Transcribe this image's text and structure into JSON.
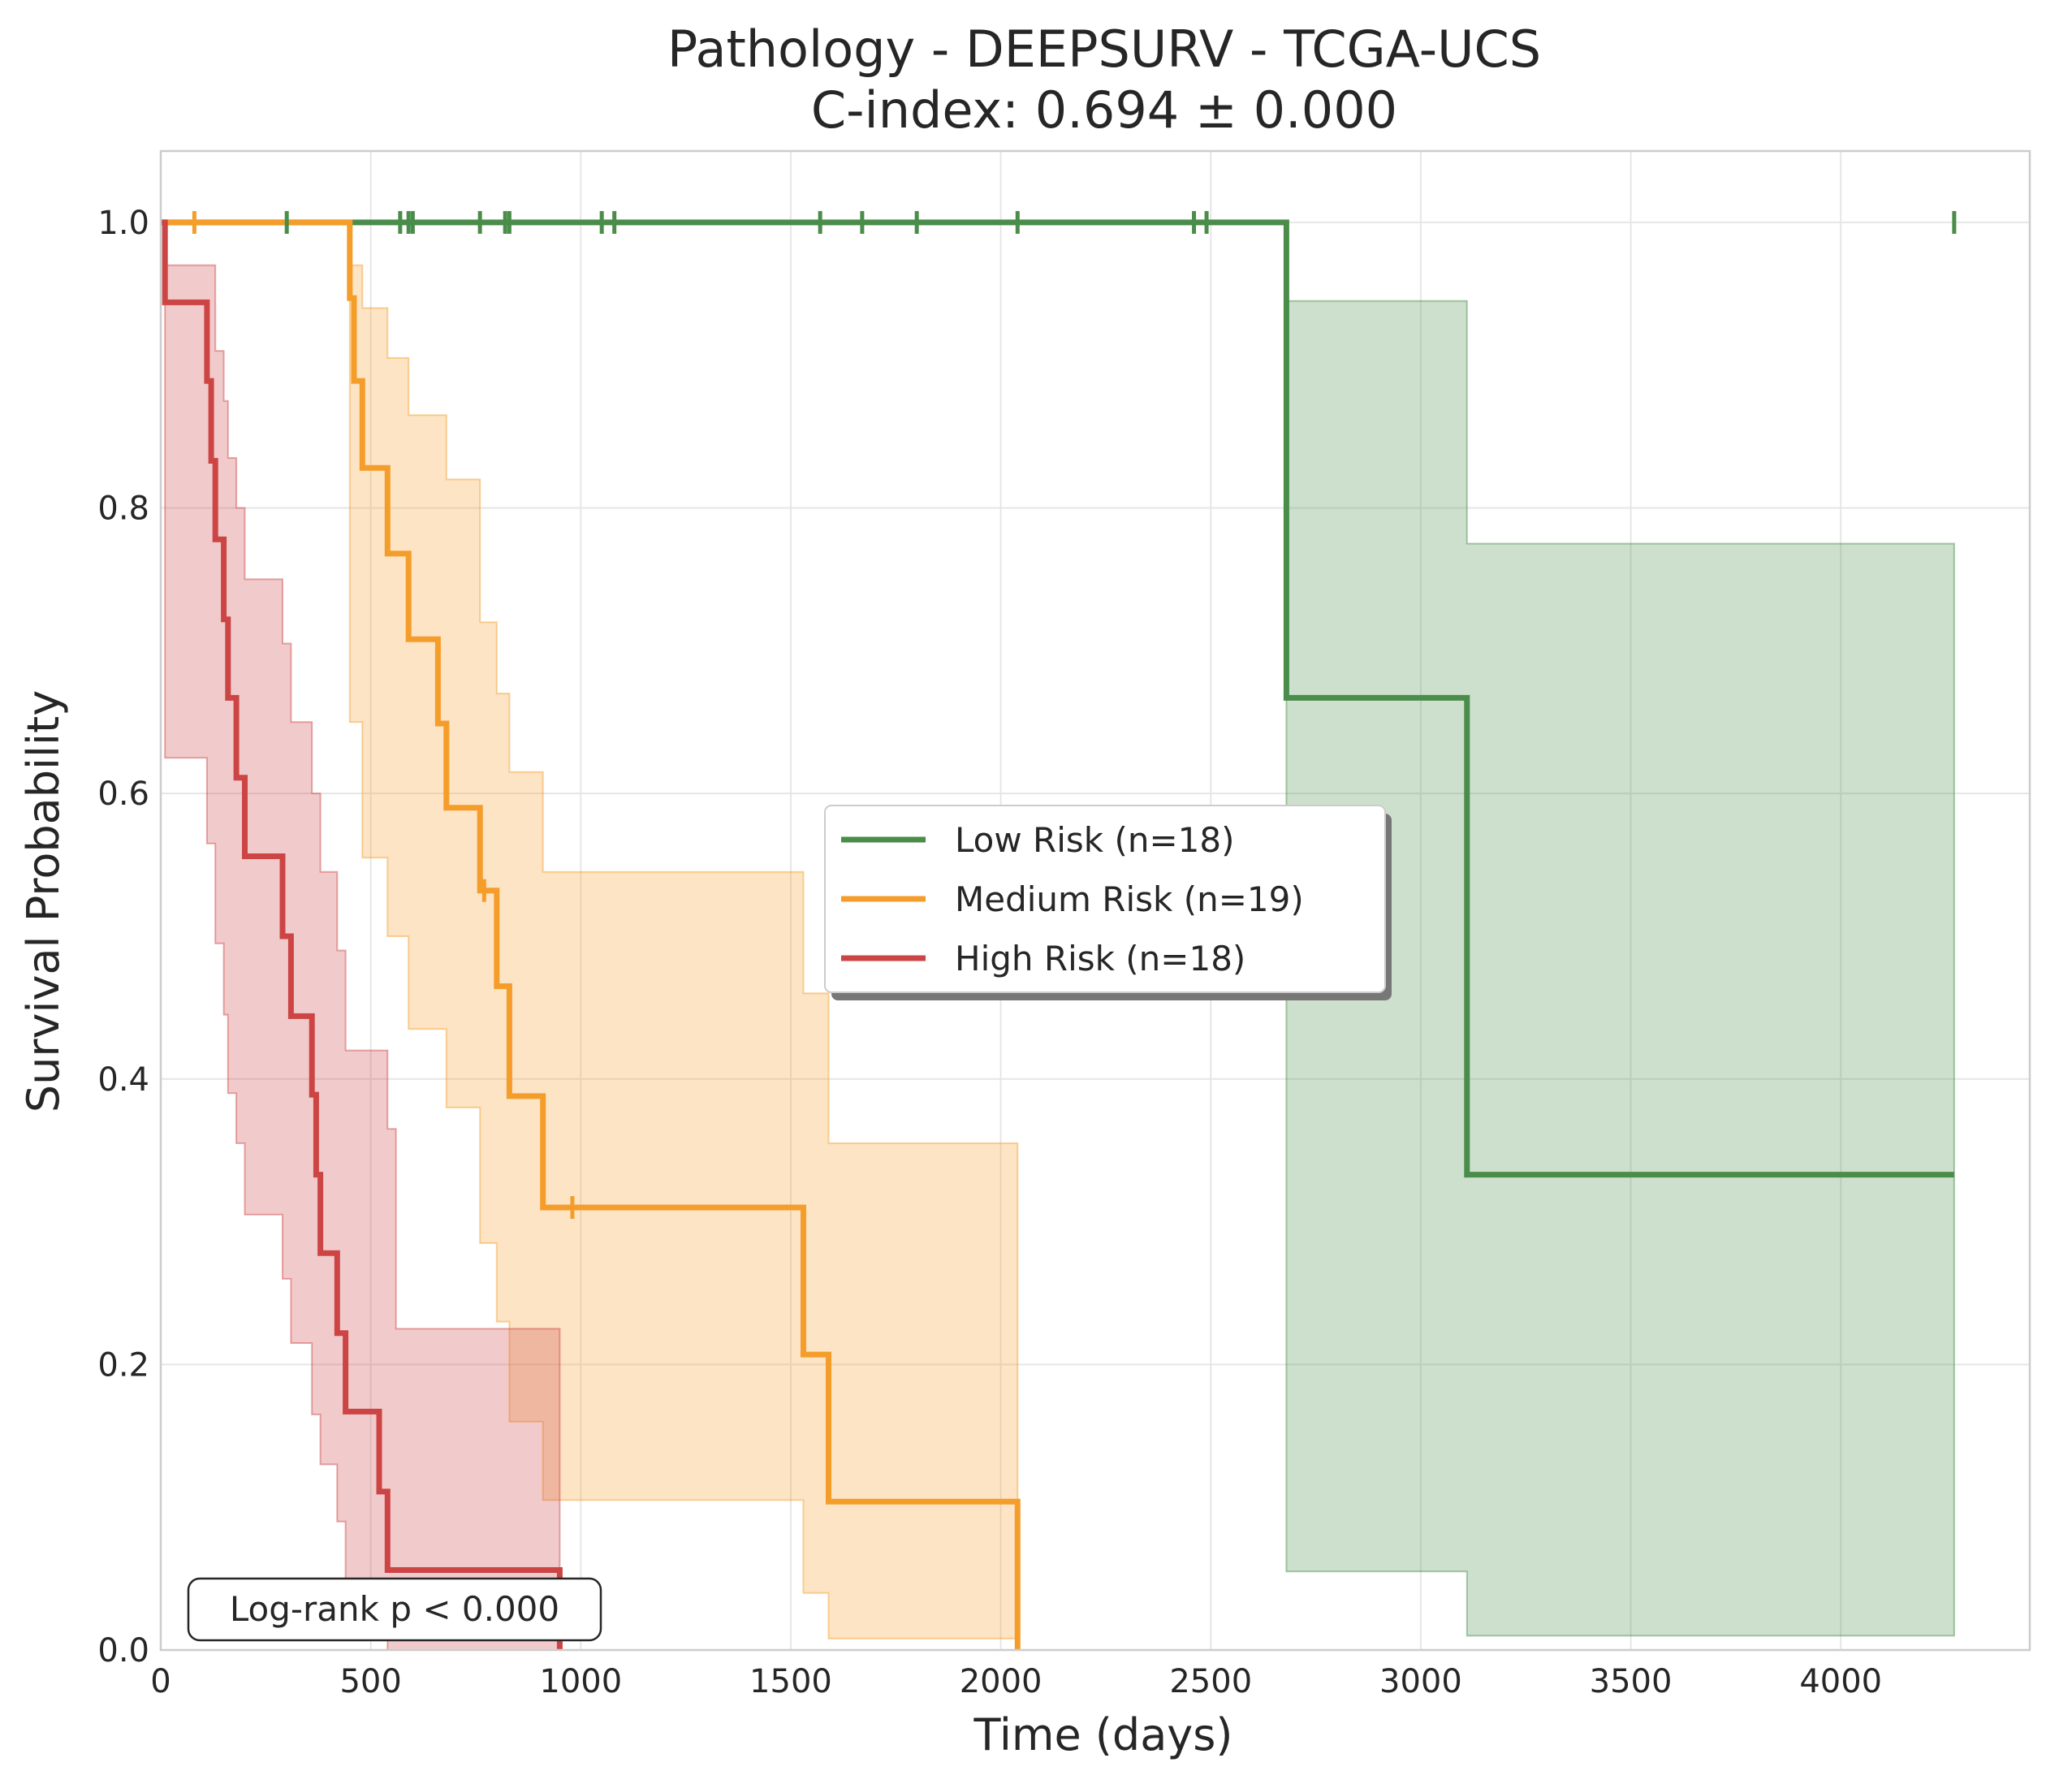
{
  "chart_data": {
    "type": "line",
    "subtype": "kaplan-meier",
    "title": "Pathology - DEEPSURV - TCGA-UCS",
    "subtitle": "C-index: 0.694 ± 0.000",
    "xlabel": "Time (days)",
    "ylabel": "Survival Probability",
    "xlim": [
      0,
      4450
    ],
    "ylim": [
      0,
      1.05
    ],
    "xticks": [
      0,
      500,
      1000,
      1500,
      2000,
      2500,
      3000,
      3500,
      4000
    ],
    "xtick_labels": [
      "0",
      "500",
      "1000",
      "1500",
      "2000",
      "2500",
      "3000",
      "3500",
      "4000"
    ],
    "yticks": [
      0,
      0.2,
      0.4,
      0.6,
      0.8,
      1.0
    ],
    "ytick_labels": [
      "0.0",
      "0.2",
      "0.4",
      "0.6",
      "0.8",
      "1.0"
    ],
    "grid": true,
    "legend_position": "center-right",
    "annotation": "Log-rank p < 0.000",
    "series": [
      {
        "name": "Low Risk (n=18)",
        "color": "#4a8c4a",
        "steps": [
          [
            0,
            1.0
          ],
          [
            2680,
            0.667
          ],
          [
            3110,
            0.333
          ],
          [
            4270,
            0.333
          ]
        ],
        "ci": [
          [
            2680,
            0.055,
            0.945
          ],
          [
            3110,
            0.01,
            0.775
          ],
          [
            4270,
            0.01,
            0.775
          ]
        ],
        "censor_x": [
          300,
          570,
          590,
          600,
          760,
          820,
          830,
          1050,
          1080,
          1570,
          1670,
          1800,
          2040,
          2460,
          2490,
          4270
        ],
        "censor_y": 1.0
      },
      {
        "name": "Medium Risk (n=19)",
        "color": "#f59d2a",
        "steps": [
          [
            0,
            1.0
          ],
          [
            450,
            0.947
          ],
          [
            460,
            0.889
          ],
          [
            480,
            0.828
          ],
          [
            540,
            0.768
          ],
          [
            590,
            0.708
          ],
          [
            660,
            0.649
          ],
          [
            680,
            0.59
          ],
          [
            760,
            0.532
          ],
          [
            800,
            0.465
          ],
          [
            830,
            0.388
          ],
          [
            910,
            0.31
          ],
          [
            1530,
            0.207
          ],
          [
            1590,
            0.104
          ],
          [
            2040,
            0.0
          ]
        ],
        "ci": [
          [
            450,
            0.65,
            0.97
          ],
          [
            480,
            0.555,
            0.94
          ],
          [
            540,
            0.5,
            0.905
          ],
          [
            590,
            0.435,
            0.865
          ],
          [
            680,
            0.38,
            0.82
          ],
          [
            760,
            0.285,
            0.72
          ],
          [
            800,
            0.23,
            0.67
          ],
          [
            830,
            0.16,
            0.615
          ],
          [
            910,
            0.105,
            0.545
          ],
          [
            1530,
            0.04,
            0.46
          ],
          [
            1590,
            0.008,
            0.355
          ],
          [
            2040,
            0.008,
            0.355
          ]
        ],
        "censor_x": [
          80,
          770,
          980
        ],
        "censor_y_values": [
          1.0,
          0.532,
          0.31
        ]
      },
      {
        "name": "High Risk (n=18)",
        "color": "#cc4444",
        "steps": [
          [
            0,
            1.0
          ],
          [
            10,
            0.944
          ],
          [
            110,
            0.889
          ],
          [
            120,
            0.833
          ],
          [
            130,
            0.778
          ],
          [
            150,
            0.722
          ],
          [
            160,
            0.667
          ],
          [
            180,
            0.611
          ],
          [
            200,
            0.556
          ],
          [
            290,
            0.5
          ],
          [
            310,
            0.444
          ],
          [
            360,
            0.389
          ],
          [
            370,
            0.333
          ],
          [
            380,
            0.278
          ],
          [
            420,
            0.222
          ],
          [
            440,
            0.167
          ],
          [
            520,
            0.111
          ],
          [
            540,
            0.056
          ],
          [
            950,
            0.0
          ]
        ],
        "ci": [
          [
            10,
            0.625,
            0.97
          ],
          [
            110,
            0.565,
            0.97
          ],
          [
            130,
            0.495,
            0.91
          ],
          [
            150,
            0.445,
            0.875
          ],
          [
            160,
            0.39,
            0.835
          ],
          [
            180,
            0.355,
            0.8
          ],
          [
            200,
            0.305,
            0.75
          ],
          [
            290,
            0.26,
            0.705
          ],
          [
            310,
            0.215,
            0.65
          ],
          [
            360,
            0.165,
            0.6
          ],
          [
            380,
            0.13,
            0.545
          ],
          [
            420,
            0.09,
            0.49
          ],
          [
            440,
            0.04,
            0.42
          ],
          [
            540,
            0.0,
            0.365
          ],
          [
            560,
            0.0,
            0.225
          ],
          [
            950,
            0.0,
            0.225
          ]
        ],
        "censor_x": [],
        "censor_y": 1.0
      }
    ]
  }
}
